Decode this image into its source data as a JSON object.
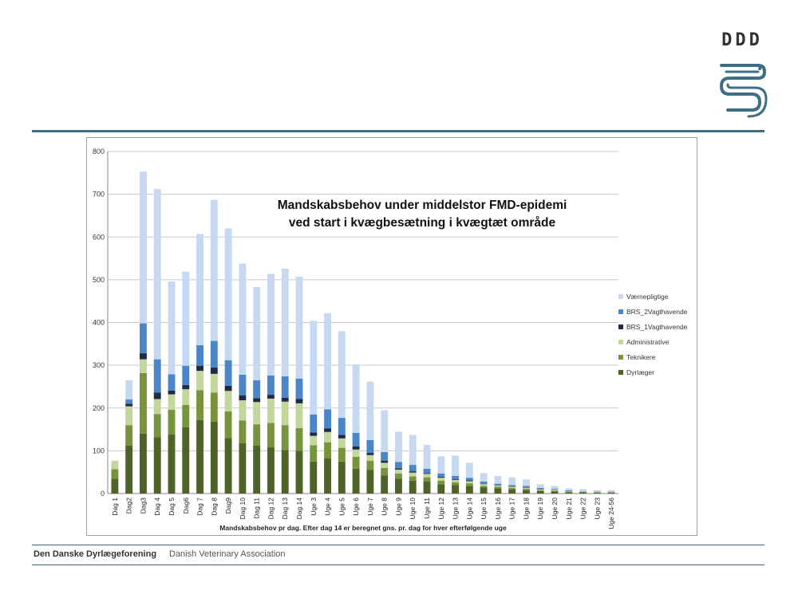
{
  "logo": {
    "text": "DDD",
    "color": "#3e6e86"
  },
  "footer": {
    "org_name": "Den Danske Dyrlægeforening",
    "org_name_en": "Danish Veterinary Association"
  },
  "chart_data": {
    "type": "bar",
    "stacked": true,
    "title_line1": "Mandskabsbehov under middelstor FMD-epidemi",
    "title_line2": "ved start i kvægbesætning i kvægtæt område",
    "xlabel": "Mandskabsbehov pr dag. Efter dag 14 er beregnet gns. pr. dag for hver efterfølgende uge",
    "ylabel": "",
    "ylim": [
      0,
      800
    ],
    "yticks": [
      0,
      100,
      200,
      300,
      400,
      500,
      600,
      700,
      800
    ],
    "grid": true,
    "legend_position": "right",
    "categories": [
      "Dag 1",
      "Dag2",
      "Dag3",
      "Dag 4",
      "Dag 5",
      "Dag6",
      "Dag 7",
      "Dag 8",
      "Dag9",
      "Dag 10",
      "Dag 11",
      "Dag 12",
      "Dag 13",
      "Dag 14",
      "Uge 3",
      "Uge 4",
      "Uge 5",
      "Uge 6",
      "Uge 7",
      "Uge 8",
      "Uge 9",
      "Uge 10",
      "Uge 11",
      "Uge 12",
      "Uge 13",
      "Uge 14",
      "Uge 15",
      "Uge 16",
      "Uge 17",
      "Uge 18",
      "Uge 19",
      "Uge 20",
      "Uge 21",
      "Uge 22",
      "Uge 23",
      "Uge 24-56"
    ],
    "series": [
      {
        "name": "Dyrlæger",
        "color": "#4f6228",
        "values": [
          35,
          112,
          140,
          132,
          138,
          155,
          172,
          168,
          130,
          118,
          112,
          108,
          102,
          100,
          75,
          82,
          75,
          58,
          55,
          42,
          35,
          30,
          28,
          22,
          20,
          18,
          14,
          12,
          10,
          8,
          6,
          5,
          3,
          3,
          2,
          2
        ]
      },
      {
        "name": "Teknikere",
        "color": "#77933c",
        "values": [
          22,
          48,
          142,
          54,
          58,
          52,
          70,
          68,
          62,
          53,
          50,
          57,
          58,
          53,
          38,
          38,
          32,
          28,
          22,
          18,
          12,
          10,
          10,
          8,
          6,
          6,
          4,
          4,
          3,
          3,
          2,
          2,
          2,
          1,
          1,
          1
        ]
      },
      {
        "name": "Administrative",
        "color": "#c3d69b",
        "values": [
          20,
          44,
          32,
          35,
          36,
          37,
          45,
          44,
          48,
          47,
          52,
          57,
          55,
          58,
          22,
          24,
          22,
          17,
          13,
          12,
          9,
          9,
          8,
          7,
          6,
          5,
          4,
          3,
          3,
          3,
          2,
          2,
          1,
          1,
          1,
          1
        ]
      },
      {
        "name": "BRS_1Vagthavende",
        "color": "#1f2a44",
        "values": [
          0,
          6,
          14,
          15,
          9,
          10,
          12,
          15,
          12,
          12,
          9,
          9,
          9,
          10,
          8,
          8,
          8,
          7,
          5,
          5,
          3,
          3,
          2,
          2,
          2,
          2,
          1,
          1,
          1,
          1,
          1,
          0,
          0,
          0,
          0,
          0
        ]
      },
      {
        "name": "BRS_2Vagthavende",
        "color": "#4a86c8",
        "values": [
          0,
          10,
          70,
          78,
          38,
          45,
          48,
          62,
          60,
          48,
          42,
          45,
          50,
          48,
          42,
          45,
          40,
          32,
          30,
          20,
          15,
          15,
          10,
          8,
          7,
          6,
          5,
          3,
          3,
          3,
          2,
          2,
          2,
          1,
          1,
          1
        ]
      },
      {
        "name": "Værnepligtige",
        "color": "#c6d9f1",
        "values": [
          0,
          45,
          355,
          398,
          217,
          220,
          260,
          330,
          308,
          260,
          218,
          238,
          252,
          238,
          219,
          225,
          203,
          160,
          137,
          98,
          71,
          70,
          56,
          40,
          48,
          35,
          20,
          18,
          18,
          15,
          9,
          7,
          4,
          4,
          3,
          3
        ]
      }
    ]
  }
}
